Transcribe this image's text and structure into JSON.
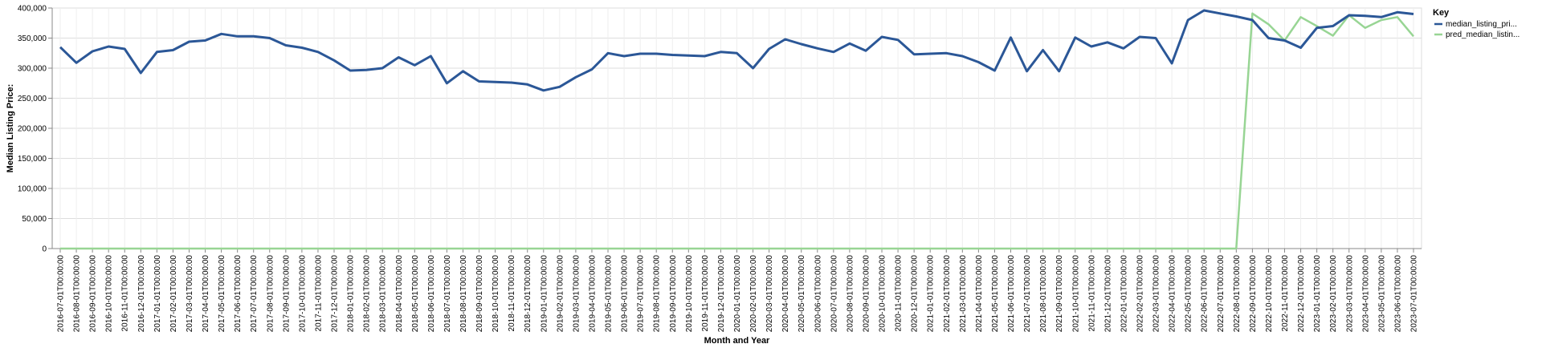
{
  "chart_data": {
    "type": "line",
    "xlabel": "Month and Year",
    "ylabel": "Median Listing Price:",
    "ylim": [
      0,
      400000
    ],
    "yticks": [
      0,
      50000,
      100000,
      150000,
      200000,
      250000,
      300000,
      350000,
      400000
    ],
    "ytick_labels": [
      "0",
      "50,000",
      "100,000",
      "150,000",
      "200,000",
      "250,000",
      "300,000",
      "350,000",
      "400,000"
    ],
    "grid": true,
    "legend": {
      "title": "Key",
      "placement": "right"
    },
    "x": [
      "2016-07-01T00:00:00",
      "2016-08-01T00:00:00",
      "2016-09-01T00:00:00",
      "2016-10-01T00:00:00",
      "2016-11-01T00:00:00",
      "2016-12-01T00:00:00",
      "2017-01-01T00:00:00",
      "2017-02-01T00:00:00",
      "2017-03-01T00:00:00",
      "2017-04-01T00:00:00",
      "2017-05-01T00:00:00",
      "2017-06-01T00:00:00",
      "2017-07-01T00:00:00",
      "2017-08-01T00:00:00",
      "2017-09-01T00:00:00",
      "2017-10-01T00:00:00",
      "2017-11-01T00:00:00",
      "2017-12-01T00:00:00",
      "2018-01-01T00:00:00",
      "2018-02-01T00:00:00",
      "2018-03-01T00:00:00",
      "2018-04-01T00:00:00",
      "2018-05-01T00:00:00",
      "2018-06-01T00:00:00",
      "2018-07-01T00:00:00",
      "2018-08-01T00:00:00",
      "2018-09-01T00:00:00",
      "2018-10-01T00:00:00",
      "2018-11-01T00:00:00",
      "2018-12-01T00:00:00",
      "2019-01-01T00:00:00",
      "2019-02-01T00:00:00",
      "2019-03-01T00:00:00",
      "2019-04-01T00:00:00",
      "2019-05-01T00:00:00",
      "2019-06-01T00:00:00",
      "2019-07-01T00:00:00",
      "2019-08-01T00:00:00",
      "2019-09-01T00:00:00",
      "2019-10-01T00:00:00",
      "2019-11-01T00:00:00",
      "2019-12-01T00:00:00",
      "2020-01-01T00:00:00",
      "2020-02-01T00:00:00",
      "2020-03-01T00:00:00",
      "2020-04-01T00:00:00",
      "2020-05-01T00:00:00",
      "2020-06-01T00:00:00",
      "2020-07-01T00:00:00",
      "2020-08-01T00:00:00",
      "2020-09-01T00:00:00",
      "2020-10-01T00:00:00",
      "2020-11-01T00:00:00",
      "2020-12-01T00:00:00",
      "2021-01-01T00:00:00",
      "2021-02-01T00:00:00",
      "2021-03-01T00:00:00",
      "2021-04-01T00:00:00",
      "2021-05-01T00:00:00",
      "2021-06-01T00:00:00",
      "2021-07-01T00:00:00",
      "2021-08-01T00:00:00",
      "2021-09-01T00:00:00",
      "2021-10-01T00:00:00",
      "2021-11-01T00:00:00",
      "2021-12-01T00:00:00",
      "2022-01-01T00:00:00",
      "2022-02-01T00:00:00",
      "2022-03-01T00:00:00",
      "2022-04-01T00:00:00",
      "2022-05-01T00:00:00",
      "2022-06-01T00:00:00",
      "2022-07-01T00:00:00",
      "2022-08-01T00:00:00",
      "2022-09-01T00:00:00",
      "2022-10-01T00:00:00",
      "2022-11-01T00:00:00",
      "2022-12-01T00:00:00",
      "2023-01-01T00:00:00",
      "2023-02-01T00:00:00",
      "2023-03-01T00:00:00",
      "2023-04-01T00:00:00",
      "2023-05-01T00:00:00",
      "2023-06-01T00:00:00",
      "2023-07-01T00:00:00"
    ],
    "series": [
      {
        "name": "median_listing_pri...",
        "color": "#2b5797",
        "values": [
          335000,
          309000,
          328000,
          336000,
          332000,
          292000,
          327000,
          330000,
          344000,
          346000,
          357000,
          353000,
          353000,
          350000,
          338000,
          334000,
          327000,
          313000,
          296000,
          297000,
          300000,
          318000,
          305000,
          320000,
          275000,
          295000,
          278000,
          277000,
          276000,
          273000,
          263000,
          269000,
          285000,
          298000,
          325000,
          320000,
          324000,
          324000,
          322000,
          321000,
          320000,
          327000,
          325000,
          300000,
          332000,
          348000,
          340000,
          333000,
          327000,
          341000,
          329000,
          352000,
          347000,
          323000,
          324000,
          325000,
          320000,
          310000,
          296000,
          351000,
          295000,
          330000,
          295000,
          351000,
          336000,
          343000,
          333000,
          352000,
          350000,
          308000,
          380000,
          396000,
          391000,
          386000,
          380000,
          350000,
          346000,
          334000,
          367000,
          370000,
          388000,
          387000,
          385000,
          393000,
          390000
        ]
      },
      {
        "name": "pred_median_listin...",
        "color": "#98d594",
        "values": [
          0,
          0,
          0,
          0,
          0,
          0,
          0,
          0,
          0,
          0,
          0,
          0,
          0,
          0,
          0,
          0,
          0,
          0,
          0,
          0,
          0,
          0,
          0,
          0,
          0,
          0,
          0,
          0,
          0,
          0,
          0,
          0,
          0,
          0,
          0,
          0,
          0,
          0,
          0,
          0,
          0,
          0,
          0,
          0,
          0,
          0,
          0,
          0,
          0,
          0,
          0,
          0,
          0,
          0,
          0,
          0,
          0,
          0,
          0,
          0,
          0,
          0,
          0,
          0,
          0,
          0,
          0,
          0,
          0,
          0,
          0,
          0,
          0,
          0,
          391000,
          373000,
          346000,
          385000,
          370000,
          354000,
          388000,
          367000,
          380000,
          385000,
          353000
        ]
      }
    ]
  }
}
